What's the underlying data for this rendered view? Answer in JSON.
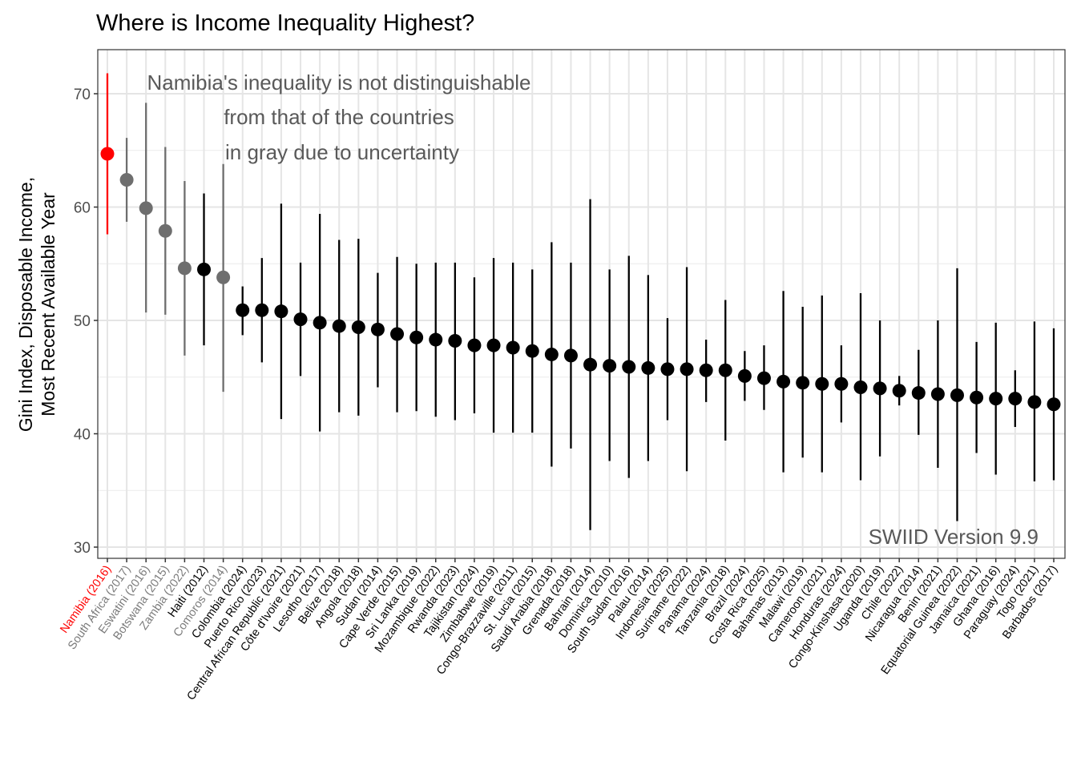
{
  "chart_data": {
    "type": "scatter",
    "subtype": "point-range",
    "title": "Where is Income Inequality Highest?",
    "xlabel": "",
    "ylabel": [
      "Gini Index, Disposable Income,",
      "Most Recent Available Year"
    ],
    "ylim": [
      29,
      74
    ],
    "yticks": [
      30,
      40,
      50,
      60,
      70
    ],
    "grid": true,
    "legend": "none",
    "colors": {
      "highlight": "#ff0000",
      "indistinguishable": "#6e6e6e",
      "other": "#000000"
    },
    "annotation": [
      "Namibia's inequality is not distinguishable",
      "from that of the countries",
      "in gray due to uncertainty"
    ],
    "credit": "SWIID Version 9.9",
    "points": [
      {
        "label": "Namibia (2016)",
        "value": 64.7,
        "low": 57.6,
        "high": 71.8,
        "group": "highlight"
      },
      {
        "label": "South Africa (2017)",
        "value": 62.4,
        "low": 58.7,
        "high": 66.1,
        "group": "indistinguishable"
      },
      {
        "label": "Eswatini (2016)",
        "value": 59.9,
        "low": 50.7,
        "high": 69.2,
        "group": "indistinguishable"
      },
      {
        "label": "Botswana (2015)",
        "value": 57.9,
        "low": 50.5,
        "high": 65.3,
        "group": "indistinguishable"
      },
      {
        "label": "Zambia (2022)",
        "value": 54.6,
        "low": 46.9,
        "high": 62.3,
        "group": "indistinguishable"
      },
      {
        "label": "Haiti (2012)",
        "value": 54.5,
        "low": 47.8,
        "high": 61.2,
        "group": "other"
      },
      {
        "label": "Comoros (2014)",
        "value": 53.8,
        "low": 43.7,
        "high": 63.8,
        "group": "indistinguishable"
      },
      {
        "label": "Colombia (2024)",
        "value": 50.9,
        "low": 48.7,
        "high": 53.0,
        "group": "other"
      },
      {
        "label": "Puerto Rico (2023)",
        "value": 50.9,
        "low": 46.3,
        "high": 55.5,
        "group": "other"
      },
      {
        "label": "Central African Republic (2021)",
        "value": 50.8,
        "low": 41.3,
        "high": 60.3,
        "group": "other"
      },
      {
        "label": "Côte d'Ivoire (2021)",
        "value": 50.1,
        "low": 45.1,
        "high": 55.1,
        "group": "other"
      },
      {
        "label": "Lesotho (2017)",
        "value": 49.8,
        "low": 40.2,
        "high": 59.4,
        "group": "other"
      },
      {
        "label": "Belize (2018)",
        "value": 49.5,
        "low": 41.9,
        "high": 57.1,
        "group": "other"
      },
      {
        "label": "Angola (2018)",
        "value": 49.4,
        "low": 41.6,
        "high": 57.2,
        "group": "other"
      },
      {
        "label": "Sudan (2014)",
        "value": 49.2,
        "low": 44.1,
        "high": 54.2,
        "group": "other"
      },
      {
        "label": "Cape Verde (2015)",
        "value": 48.8,
        "low": 41.9,
        "high": 55.6,
        "group": "other"
      },
      {
        "label": "Sri Lanka (2019)",
        "value": 48.5,
        "low": 42.0,
        "high": 55.0,
        "group": "other"
      },
      {
        "label": "Mozambique (2022)",
        "value": 48.3,
        "low": 41.5,
        "high": 55.1,
        "group": "other"
      },
      {
        "label": "Rwanda (2023)",
        "value": 48.2,
        "low": 41.2,
        "high": 55.1,
        "group": "other"
      },
      {
        "label": "Tajikistan (2024)",
        "value": 47.8,
        "low": 41.8,
        "high": 53.8,
        "group": "other"
      },
      {
        "label": "Zimbabwe (2019)",
        "value": 47.8,
        "low": 40.1,
        "high": 55.5,
        "group": "other"
      },
      {
        "label": "Congo-Brazzaville (2011)",
        "value": 47.6,
        "low": 40.1,
        "high": 55.1,
        "group": "other"
      },
      {
        "label": "St. Lucia (2015)",
        "value": 47.3,
        "low": 40.1,
        "high": 54.5,
        "group": "other"
      },
      {
        "label": "Saudi Arabia (2018)",
        "value": 47.0,
        "low": 37.1,
        "high": 56.9,
        "group": "other"
      },
      {
        "label": "Grenada (2018)",
        "value": 46.9,
        "low": 38.7,
        "high": 55.1,
        "group": "other"
      },
      {
        "label": "Bahrain (2014)",
        "value": 46.1,
        "low": 31.5,
        "high": 60.7,
        "group": "other"
      },
      {
        "label": "Dominica (2010)",
        "value": 46.0,
        "low": 37.6,
        "high": 54.5,
        "group": "other"
      },
      {
        "label": "South Sudan (2016)",
        "value": 45.9,
        "low": 36.1,
        "high": 55.7,
        "group": "other"
      },
      {
        "label": "Palau (2014)",
        "value": 45.8,
        "low": 37.6,
        "high": 54.0,
        "group": "other"
      },
      {
        "label": "Indonesia (2025)",
        "value": 45.7,
        "low": 41.2,
        "high": 50.2,
        "group": "other"
      },
      {
        "label": "Suriname (2022)",
        "value": 45.7,
        "low": 36.7,
        "high": 54.7,
        "group": "other"
      },
      {
        "label": "Panama (2024)",
        "value": 45.6,
        "low": 42.8,
        "high": 48.3,
        "group": "other"
      },
      {
        "label": "Tanzania (2018)",
        "value": 45.6,
        "low": 39.4,
        "high": 51.8,
        "group": "other"
      },
      {
        "label": "Brazil (2024)",
        "value": 45.1,
        "low": 42.9,
        "high": 47.3,
        "group": "other"
      },
      {
        "label": "Costa Rica (2025)",
        "value": 44.9,
        "low": 42.1,
        "high": 47.8,
        "group": "other"
      },
      {
        "label": "Bahamas (2013)",
        "value": 44.6,
        "low": 36.6,
        "high": 52.6,
        "group": "other"
      },
      {
        "label": "Malawi (2019)",
        "value": 44.5,
        "low": 37.9,
        "high": 51.2,
        "group": "other"
      },
      {
        "label": "Cameroon (2021)",
        "value": 44.4,
        "low": 36.6,
        "high": 52.2,
        "group": "other"
      },
      {
        "label": "Honduras (2024)",
        "value": 44.4,
        "low": 41.0,
        "high": 47.8,
        "group": "other"
      },
      {
        "label": "Congo-Kinshasa (2020)",
        "value": 44.1,
        "low": 35.9,
        "high": 52.4,
        "group": "other"
      },
      {
        "label": "Uganda (2019)",
        "value": 44.0,
        "low": 38.0,
        "high": 50.0,
        "group": "other"
      },
      {
        "label": "Chile (2022)",
        "value": 43.8,
        "low": 42.5,
        "high": 45.1,
        "group": "other"
      },
      {
        "label": "Nicaragua (2014)",
        "value": 43.6,
        "low": 39.9,
        "high": 47.4,
        "group": "other"
      },
      {
        "label": "Benin (2021)",
        "value": 43.5,
        "low": 37.0,
        "high": 50.0,
        "group": "other"
      },
      {
        "label": "Equatorial Guinea (2022)",
        "value": 43.4,
        "low": 32.3,
        "high": 54.6,
        "group": "other"
      },
      {
        "label": "Jamaica (2021)",
        "value": 43.2,
        "low": 38.3,
        "high": 48.1,
        "group": "other"
      },
      {
        "label": "Ghana (2016)",
        "value": 43.1,
        "low": 36.4,
        "high": 49.8,
        "group": "other"
      },
      {
        "label": "Paraguay (2024)",
        "value": 43.1,
        "low": 40.6,
        "high": 45.6,
        "group": "other"
      },
      {
        "label": "Togo (2021)",
        "value": 42.8,
        "low": 35.8,
        "high": 49.9,
        "group": "other"
      },
      {
        "label": "Barbados (2017)",
        "value": 42.6,
        "low": 35.9,
        "high": 49.3,
        "group": "other"
      }
    ]
  }
}
